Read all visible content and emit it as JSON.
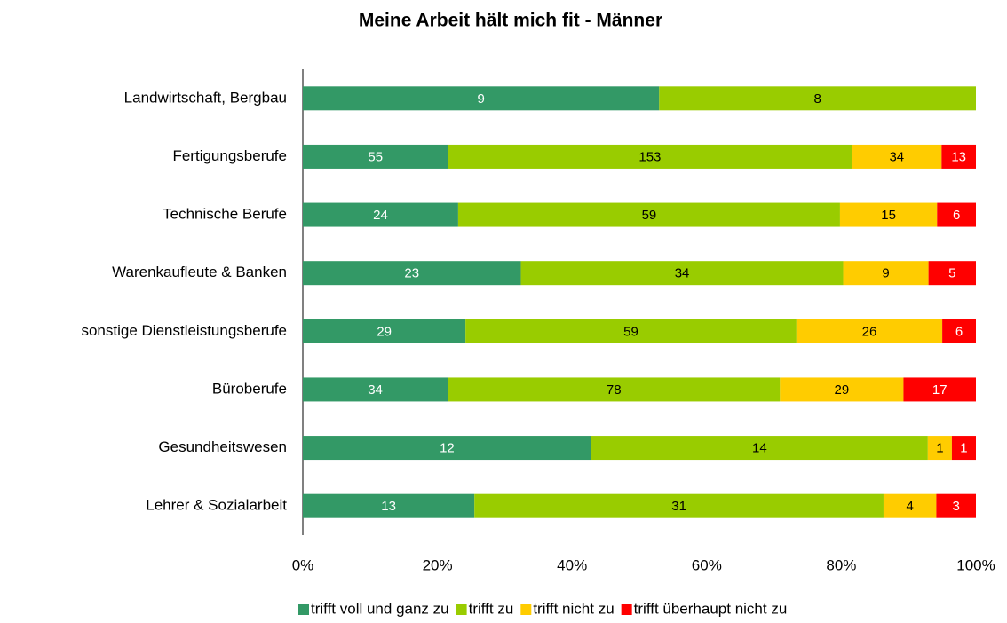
{
  "chart_data": {
    "type": "stacked_bar_100",
    "orientation": "horizontal",
    "title": "Meine Arbeit hält mich fit - Männer",
    "categories": [
      "Landwirtschaft, Bergbau",
      "Fertigungsberufe",
      "Technische Berufe",
      "Warenkaufleute & Banken",
      "sonstige Dienstleistungsberufe",
      "Büroberufe",
      "Gesundheitswesen",
      "Lehrer & Sozialarbeit"
    ],
    "series": [
      {
        "name": "trifft voll und ganz zu",
        "color": "#339966",
        "label_color": "#ffffff",
        "values": [
          9,
          55,
          24,
          23,
          29,
          34,
          12,
          13
        ]
      },
      {
        "name": "trifft zu",
        "color": "#99cc00",
        "label_color": "#000000",
        "values": [
          8,
          153,
          59,
          34,
          59,
          78,
          14,
          31
        ]
      },
      {
        "name": "trifft nicht zu",
        "color": "#ffcc00",
        "label_color": "#000000",
        "values": [
          null,
          34,
          15,
          9,
          26,
          29,
          1,
          4
        ]
      },
      {
        "name": "trifft überhaupt nicht zu",
        "color": "#ff0000",
        "label_color": "#ffffff",
        "values": [
          null,
          13,
          6,
          5,
          6,
          17,
          1,
          3
        ]
      }
    ],
    "xlim": [
      0,
      100
    ],
    "xticks": [
      {
        "value": 0,
        "label": "0%"
      },
      {
        "value": 20,
        "label": "20%"
      },
      {
        "value": 40,
        "label": "40%"
      },
      {
        "value": 60,
        "label": "60%"
      },
      {
        "value": 80,
        "label": "80%"
      },
      {
        "value": 100,
        "label": "100%"
      }
    ],
    "legend": "bottom"
  }
}
